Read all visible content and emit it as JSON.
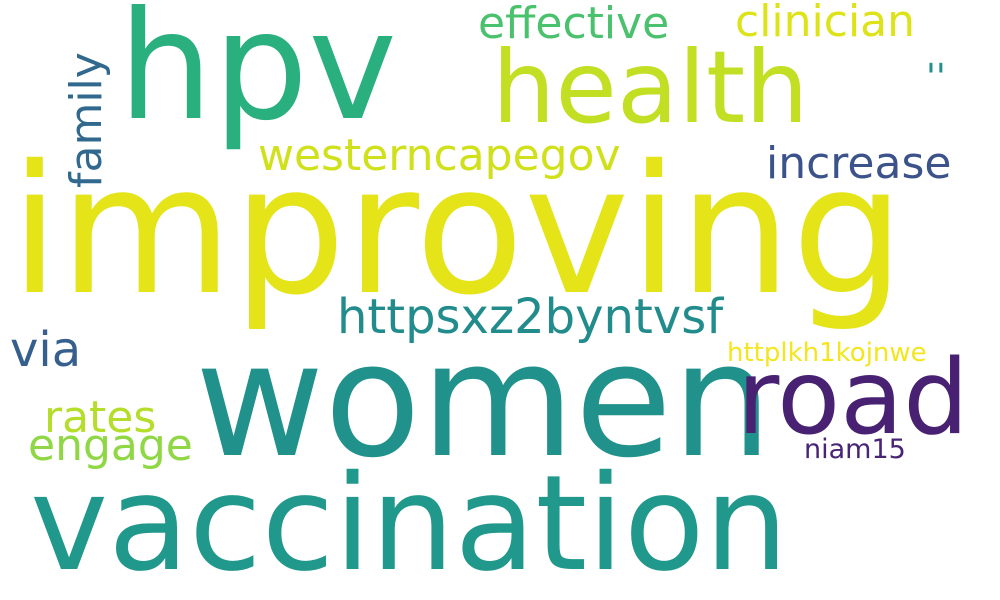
{
  "words": [
    {
      "key": "improving",
      "text": "improving",
      "color": "#e4e419"
    },
    {
      "key": "women",
      "text": "women",
      "color": "#21918c"
    },
    {
      "key": "vaccination",
      "text": "vaccination",
      "color": "#21988c"
    },
    {
      "key": "hpv",
      "text": "hpv",
      "color": "#2ab07f"
    },
    {
      "key": "health",
      "text": "health",
      "color": "#c2df23"
    },
    {
      "key": "road",
      "text": "road",
      "color": "#482173"
    },
    {
      "key": "effective",
      "text": "effective",
      "color": "#4ac16d"
    },
    {
      "key": "clinician",
      "text": "clinician",
      "color": "#dde318"
    },
    {
      "key": "quote",
      "text": "''",
      "color": "#21918c"
    },
    {
      "key": "family",
      "text": "family",
      "color": "#31688e"
    },
    {
      "key": "westerncapegov",
      "text": "westerncapegov",
      "color": "#d0e11c"
    },
    {
      "key": "increase",
      "text": "increase",
      "color": "#3b528b"
    },
    {
      "key": "httpsxz2byntvsf",
      "text": "httpsxz2byntvsf",
      "color": "#228c8d"
    },
    {
      "key": "via",
      "text": "via",
      "color": "#355f8d"
    },
    {
      "key": "httplkh1kojnwe",
      "text": "httplkh1kojnwe",
      "color": "#f4e61e"
    },
    {
      "key": "rates",
      "text": "rates",
      "color": "#b5de2b"
    },
    {
      "key": "engage",
      "text": "engage",
      "color": "#8fd744"
    },
    {
      "key": "niam15",
      "text": "niam15",
      "color": "#482475"
    }
  ]
}
